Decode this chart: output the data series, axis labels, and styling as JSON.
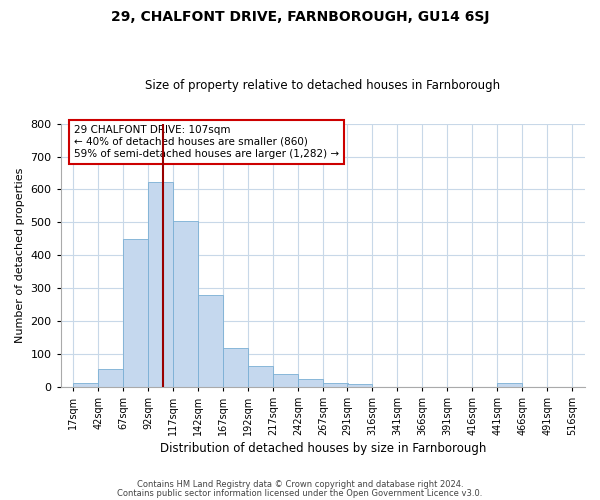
{
  "title1": "29, CHALFONT DRIVE, FARNBOROUGH, GU14 6SJ",
  "title2": "Size of property relative to detached houses in Farnborough",
  "xlabel": "Distribution of detached houses by size in Farnborough",
  "ylabel": "Number of detached properties",
  "bar_color": "#c5d8ee",
  "bar_edge_color": "#7aafd4",
  "grid_color": "#c8d8e8",
  "vline_color": "#990000",
  "vline_x": 107,
  "bin_starts": [
    17,
    42,
    67,
    92,
    117,
    142,
    167,
    192,
    217,
    242,
    267,
    291,
    316,
    341,
    366,
    391,
    416,
    441,
    466,
    491
  ],
  "bin_width": 25,
  "bar_heights": [
    12,
    55,
    450,
    622,
    505,
    280,
    117,
    62,
    38,
    22,
    10,
    8,
    0,
    0,
    0,
    0,
    0,
    10,
    0,
    0
  ],
  "ylim": [
    0,
    800
  ],
  "yticks": [
    0,
    100,
    200,
    300,
    400,
    500,
    600,
    700,
    800
  ],
  "annotation_text": "29 CHALFONT DRIVE: 107sqm\n← 40% of detached houses are smaller (860)\n59% of semi-detached houses are larger (1,282) →",
  "annotation_box_color": "#ffffff",
  "annotation_box_edge": "#cc0000",
  "footer1": "Contains HM Land Registry data © Crown copyright and database right 2024.",
  "footer2": "Contains public sector information licensed under the Open Government Licence v3.0.",
  "background_color": "#ffffff",
  "plot_background": "#ffffff"
}
